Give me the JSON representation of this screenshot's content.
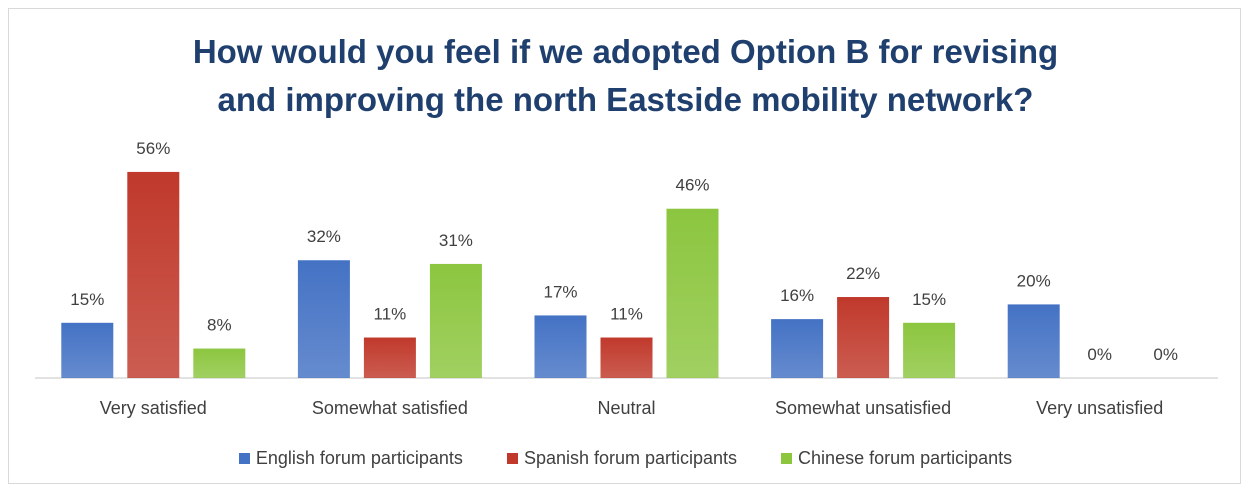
{
  "chart_data": {
    "type": "bar",
    "title": [
      "How would you feel if we adopted Option B for revising",
      "and improving the north Eastside mobility network?"
    ],
    "categories": [
      "Very satisfied",
      "Somewhat satisfied",
      "Neutral",
      "Somewhat unsatisfied",
      "Very unsatisfied"
    ],
    "series": [
      {
        "name": "English forum participants",
        "values": [
          15,
          32,
          17,
          16,
          20
        ],
        "labels": [
          "15%",
          "32%",
          "17%",
          "16%",
          "20%"
        ],
        "color": "#4472c4"
      },
      {
        "name": "Spanish forum participants",
        "values": [
          56,
          11,
          11,
          22,
          0
        ],
        "labels": [
          "56%",
          "11%",
          "11%",
          "22%",
          "0%"
        ],
        "color": "#c0392b"
      },
      {
        "name": "Chinese forum participants",
        "values": [
          8,
          31,
          46,
          15,
          0
        ],
        "labels": [
          "8%",
          "31%",
          "46%",
          "15%",
          "0%"
        ],
        "color": "#8cc63f"
      }
    ],
    "value_unit": "%",
    "ylim": [
      0,
      60
    ],
    "grid": false,
    "legend_position": "bottom"
  }
}
